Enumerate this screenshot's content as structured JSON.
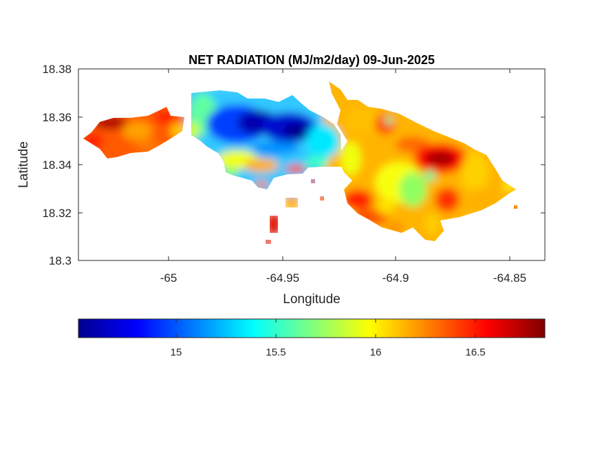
{
  "chart_data": {
    "type": "heatmap",
    "title": "NET RADIATION (MJ/m2/day) 09-Jun-2025",
    "xlabel": "Longitude",
    "ylabel": "Latitude",
    "xlim": [
      -65.041,
      -64.835
    ],
    "ylim": [
      18.3,
      18.38
    ],
    "x_ticks": [
      "-65",
      "-64.95",
      "-64.9",
      "-64.85"
    ],
    "y_ticks": [
      "18.38",
      "18.36",
      "18.34",
      "18.32",
      "18.3"
    ],
    "colorbar": {
      "colormap": "jet",
      "range": [
        14.55,
        16.82
      ],
      "ticks": [
        "15",
        "15.5",
        "16",
        "16.5"
      ]
    },
    "regions": [
      {
        "name": "west",
        "value_range": [
          16.1,
          16.8
        ]
      },
      {
        "name": "central",
        "value_range": [
          14.6,
          15.6
        ]
      },
      {
        "name": "east",
        "value_range": [
          15.8,
          16.8
        ]
      }
    ]
  }
}
